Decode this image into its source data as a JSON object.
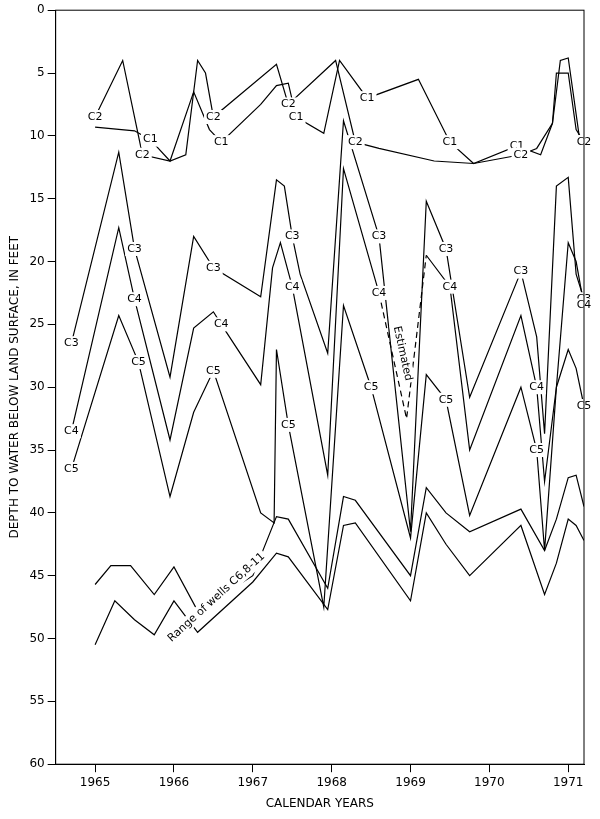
{
  "chart_data": {
    "type": "line",
    "xlabel": "CALENDAR YEARS",
    "ylabel": "DEPTH TO WATER BELOW LAND SURFACE, IN FEET",
    "xlim": [
      1964.5,
      1971.2
    ],
    "xticks": [
      1965,
      1966,
      1967,
      1968,
      1969,
      1970,
      1971
    ],
    "ylim": [
      60,
      0
    ],
    "yticks": [
      0,
      5,
      10,
      15,
      20,
      25,
      30,
      35,
      40,
      45,
      50,
      55,
      60
    ],
    "grid": false,
    "series": [
      {
        "name": "C1",
        "color": "#000000",
        "values": [
          [
            1965.0,
            9.3
          ],
          [
            1965.5,
            9.6
          ],
          [
            1965.7,
            10.3
          ],
          [
            1965.95,
            12.0
          ],
          [
            1966.25,
            6.5
          ],
          [
            1966.45,
            9.5
          ],
          [
            1966.6,
            10.5
          ],
          [
            1967.1,
            7.5
          ],
          [
            1967.3,
            6.0
          ],
          [
            1967.45,
            5.8
          ],
          [
            1967.55,
            8.5
          ],
          [
            1967.9,
            9.8
          ],
          [
            1968.1,
            4.0
          ],
          [
            1968.45,
            7.0
          ],
          [
            1969.1,
            5.5
          ],
          [
            1969.5,
            10.5
          ],
          [
            1969.8,
            12.2
          ],
          [
            1970.35,
            10.8
          ],
          [
            1970.65,
            11.5
          ],
          [
            1970.8,
            9.0
          ],
          [
            1970.85,
            5.0
          ],
          [
            1971.0,
            5.0
          ],
          [
            1971.1,
            9.5
          ],
          [
            1971.2,
            10.5
          ]
        ]
      },
      {
        "name": "C2",
        "color": "#000000",
        "values": [
          [
            1965.0,
            8.5
          ],
          [
            1965.35,
            4.0
          ],
          [
            1965.6,
            11.5
          ],
          [
            1965.95,
            12.0
          ],
          [
            1966.15,
            11.5
          ],
          [
            1966.3,
            4.0
          ],
          [
            1966.4,
            5.0
          ],
          [
            1966.5,
            8.5
          ],
          [
            1967.3,
            4.3
          ],
          [
            1967.45,
            7.5
          ],
          [
            1968.05,
            4.0
          ],
          [
            1968.3,
            10.5
          ],
          [
            1968.6,
            11.0
          ],
          [
            1969.3,
            12.0
          ],
          [
            1969.8,
            12.2
          ],
          [
            1970.4,
            11.5
          ],
          [
            1970.6,
            11.0
          ],
          [
            1970.8,
            9.0
          ],
          [
            1970.9,
            4.0
          ],
          [
            1971.0,
            3.8
          ],
          [
            1971.15,
            10.5
          ],
          [
            1971.2,
            10.5
          ]
        ]
      },
      {
        "name": "C3",
        "color": "#000000",
        "values": [
          [
            1964.7,
            26.5
          ],
          [
            1965.3,
            11.3
          ],
          [
            1965.5,
            19.0
          ],
          [
            1965.95,
            29.2
          ],
          [
            1966.25,
            18.0
          ],
          [
            1966.5,
            20.5
          ],
          [
            1967.1,
            22.8
          ],
          [
            1967.3,
            13.5
          ],
          [
            1967.4,
            14.0
          ],
          [
            1967.5,
            18.0
          ],
          [
            1967.6,
            21.0
          ],
          [
            1967.95,
            27.3
          ],
          [
            1968.15,
            8.8
          ],
          [
            1968.6,
            18.0
          ],
          [
            1969.0,
            41.5
          ],
          [
            1969.2,
            15.2
          ],
          [
            1969.45,
            19.0
          ],
          [
            1969.75,
            30.8
          ],
          [
            1970.4,
            20.8
          ],
          [
            1970.6,
            26.0
          ],
          [
            1970.7,
            33.7
          ],
          [
            1970.85,
            14.0
          ],
          [
            1971.0,
            13.3
          ],
          [
            1971.1,
            21.0
          ],
          [
            1971.2,
            23.0
          ]
        ]
      },
      {
        "name": "C4",
        "color": "#000000",
        "values": [
          [
            1964.7,
            33.5
          ],
          [
            1965.3,
            17.3
          ],
          [
            1965.5,
            23.0
          ],
          [
            1965.95,
            34.2
          ],
          [
            1966.25,
            25.3
          ],
          [
            1966.5,
            24.0
          ],
          [
            1966.6,
            25.0
          ],
          [
            1967.1,
            29.8
          ],
          [
            1967.25,
            20.5
          ],
          [
            1967.35,
            18.5
          ],
          [
            1967.5,
            22.0
          ],
          [
            1967.95,
            37.0
          ],
          [
            1968.15,
            12.6
          ],
          [
            1968.6,
            22.5
          ],
          null,
          [
            1969.2,
            19.5
          ],
          [
            1969.5,
            22.0
          ],
          [
            1969.75,
            35.0
          ],
          [
            1970.4,
            24.3
          ],
          [
            1970.6,
            30.0
          ],
          [
            1970.7,
            37.5
          ],
          [
            1970.85,
            30.0
          ],
          [
            1971.0,
            18.5
          ],
          [
            1971.1,
            20.0
          ],
          [
            1971.2,
            23.5
          ]
        ]
      },
      {
        "name": "C5",
        "color": "#000000",
        "values": [
          [
            1964.7,
            36.5
          ],
          [
            1965.3,
            24.3
          ],
          [
            1965.55,
            28.0
          ],
          [
            1965.95,
            38.7
          ],
          [
            1966.25,
            32.0
          ],
          [
            1966.5,
            28.7
          ],
          [
            1967.1,
            40.0
          ],
          [
            1967.27,
            40.8
          ],
          [
            1967.3,
            27.0
          ],
          [
            1967.45,
            33.0
          ],
          [
            1967.9,
            47.5
          ],
          [
            1968.15,
            23.5
          ],
          [
            1968.5,
            30.0
          ],
          [
            1969.0,
            42.0
          ],
          [
            1969.2,
            29.0
          ],
          [
            1969.45,
            31.0
          ],
          [
            1969.75,
            40.2
          ],
          [
            1970.4,
            30.0
          ],
          [
            1970.6,
            35.0
          ],
          [
            1970.7,
            43.0
          ],
          [
            1970.85,
            30.0
          ],
          [
            1971.0,
            27.0
          ],
          [
            1971.1,
            28.5
          ],
          [
            1971.2,
            31.5
          ]
        ]
      },
      {
        "name": "Estimated",
        "color": "#000000",
        "line_style": "dashed",
        "values": [
          [
            1968.6,
            22.5
          ],
          [
            1968.95,
            32.5
          ],
          [
            1969.2,
            19.5
          ]
        ]
      },
      {
        "name": "Range of wells C6,8-11",
        "type": "range",
        "color": "#000000",
        "values": [
          [
            1965.0,
            45.7
          ],
          [
            1965.2,
            44.2
          ],
          [
            1965.45,
            44.2
          ],
          [
            1965.75,
            46.5
          ],
          [
            1966.0,
            44.3
          ],
          [
            1966.3,
            47.8
          ],
          [
            1967.0,
            45.0
          ],
          [
            1967.3,
            40.3
          ],
          [
            1967.45,
            40.5
          ],
          [
            1967.95,
            46.0
          ],
          [
            1968.15,
            38.7
          ],
          [
            1968.3,
            39.0
          ],
          [
            1969.0,
            45.0
          ],
          [
            1969.2,
            38.0
          ],
          [
            1969.45,
            40.0
          ],
          [
            1969.75,
            41.5
          ],
          [
            1970.4,
            39.7
          ],
          [
            1970.7,
            43.0
          ],
          [
            1970.85,
            40.5
          ],
          [
            1971.0,
            37.2
          ],
          [
            1971.1,
            37.0
          ],
          [
            1971.2,
            39.5
          ]
        ],
        "lower": [
          [
            1965.0,
            50.5
          ],
          [
            1965.25,
            47.0
          ],
          [
            1965.5,
            48.5
          ],
          [
            1965.75,
            49.7
          ],
          [
            1966.0,
            47.0
          ],
          [
            1966.3,
            49.5
          ],
          [
            1967.0,
            45.5
          ],
          [
            1967.3,
            43.2
          ],
          [
            1967.45,
            43.5
          ],
          [
            1967.95,
            47.7
          ],
          [
            1968.15,
            41.0
          ],
          [
            1968.3,
            40.8
          ],
          [
            1969.0,
            47.0
          ],
          [
            1969.2,
            40.0
          ],
          [
            1969.45,
            42.5
          ],
          [
            1969.75,
            45.0
          ],
          [
            1970.4,
            41.0
          ],
          [
            1970.7,
            46.5
          ],
          [
            1970.85,
            44.0
          ],
          [
            1971.0,
            40.5
          ],
          [
            1971.1,
            41.0
          ],
          [
            1971.2,
            42.2
          ]
        ]
      }
    ]
  }
}
